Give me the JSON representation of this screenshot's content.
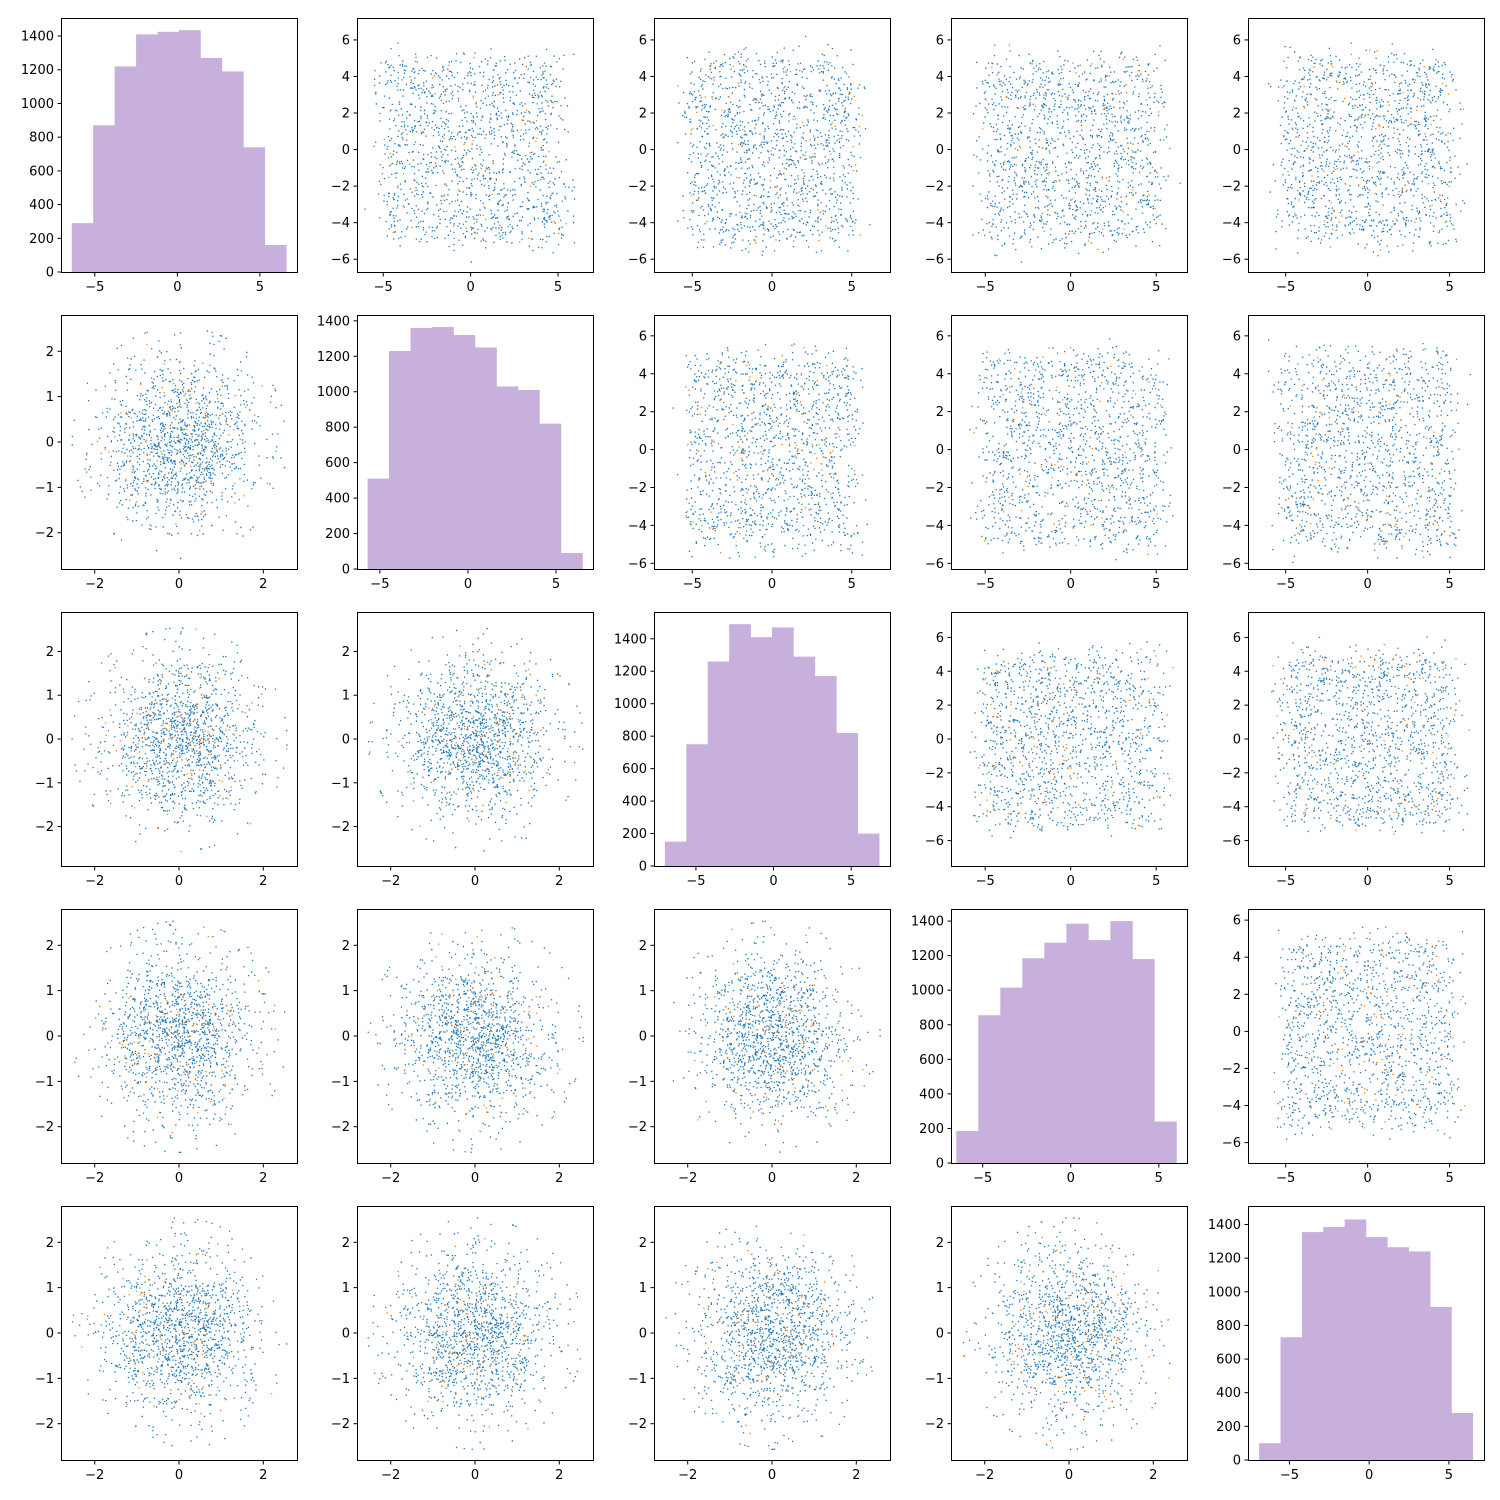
{
  "chart_data": {
    "type": "pairplot",
    "grid": false,
    "legend": "none",
    "colors": {
      "scatter_main": "#1f77b4",
      "scatter_highlight": "#ff7f0e",
      "histogram": "#c8b0dc"
    },
    "counts": [
      [
        290,
        870,
        1220,
        1410,
        1425,
        1435,
        1270,
        1190,
        740,
        160
      ],
      [
        510,
        1230,
        1360,
        1365,
        1320,
        1250,
        1030,
        1010,
        820,
        90
      ],
      [
        150,
        750,
        1260,
        1490,
        1410,
        1470,
        1290,
        1170,
        820,
        200
      ],
      [
        185,
        855,
        1015,
        1185,
        1275,
        1385,
        1290,
        1400,
        1180,
        240
      ],
      [
        100,
        730,
        1355,
        1385,
        1430,
        1325,
        1265,
        1240,
        910,
        280
      ]
    ],
    "hist_ranges": [
      [
        -6.4,
        6.6
      ],
      [
        -5.7,
        6.5
      ],
      [
        -7.0,
        6.8
      ],
      [
        -6.5,
        6.0
      ],
      [
        -6.9,
        6.5
      ]
    ],
    "panels": [
      {
        "row": 0,
        "col": 0,
        "type": "hist",
        "xlim": [
          -7.05,
          7.25
        ],
        "ylim": [
          0,
          1507
        ],
        "xticks": [
          "-5",
          "0",
          "5"
        ],
        "yticks": [
          "0",
          "200",
          "400",
          "600",
          "800",
          "1000",
          "1200",
          "1400"
        ]
      },
      {
        "row": 0,
        "col": 1,
        "type": "scatter",
        "xlim": [
          -6.5,
          7.0
        ],
        "ylim": [
          -6.7,
          7.2
        ],
        "xticks": [
          "-5",
          "0",
          "5"
        ],
        "yticks": [
          "-6",
          "-4",
          "-2",
          "0",
          "2",
          "4",
          "6"
        ]
      },
      {
        "row": 0,
        "col": 2,
        "type": "scatter",
        "xlim": [
          -7.4,
          7.4
        ],
        "ylim": [
          -6.7,
          7.2
        ],
        "xticks": [
          "-5",
          "0",
          "5"
        ],
        "yticks": [
          "-6",
          "-4",
          "-2",
          "0",
          "2",
          "4",
          "6"
        ]
      },
      {
        "row": 0,
        "col": 3,
        "type": "scatter",
        "xlim": [
          -7.0,
          6.8
        ],
        "ylim": [
          -6.7,
          7.2
        ],
        "xticks": [
          "-5",
          "0",
          "5"
        ],
        "yticks": [
          "-6",
          "-4",
          "-2",
          "0",
          "2",
          "4",
          "6"
        ]
      },
      {
        "row": 0,
        "col": 4,
        "type": "scatter",
        "xlim": [
          -7.3,
          7.1
        ],
        "ylim": [
          -6.7,
          7.2
        ],
        "xticks": [
          "-5",
          "0",
          "5"
        ],
        "yticks": [
          "-6",
          "-4",
          "-2",
          "0",
          "2",
          "4",
          "6"
        ]
      },
      {
        "row": 1,
        "col": 0,
        "type": "scatter",
        "xlim": [
          -2.8,
          2.8
        ],
        "ylim": [
          -2.8,
          2.8
        ],
        "xticks": [
          "-2",
          "0",
          "2"
        ],
        "yticks": [
          "-2",
          "-1",
          "0",
          "1",
          "2"
        ]
      },
      {
        "row": 1,
        "col": 1,
        "type": "hist",
        "xlim": [
          -6.3,
          7.1
        ],
        "ylim": [
          0,
          1433
        ],
        "xticks": [
          "-5",
          "0",
          "5"
        ],
        "yticks": [
          "0",
          "200",
          "400",
          "600",
          "800",
          "1000",
          "1200",
          "1400"
        ]
      },
      {
        "row": 1,
        "col": 2,
        "type": "scatter",
        "xlim": [
          -7.4,
          7.4
        ],
        "ylim": [
          -6.3,
          7.1
        ],
        "xticks": [
          "-5",
          "0",
          "5"
        ],
        "yticks": [
          "-6",
          "-4",
          "-2",
          "0",
          "2",
          "4",
          "6"
        ]
      },
      {
        "row": 1,
        "col": 3,
        "type": "scatter",
        "xlim": [
          -7.0,
          6.8
        ],
        "ylim": [
          -6.3,
          7.1
        ],
        "xticks": [
          "-5",
          "0",
          "5"
        ],
        "yticks": [
          "-6",
          "-4",
          "-2",
          "0",
          "2",
          "4",
          "6"
        ]
      },
      {
        "row": 1,
        "col": 4,
        "type": "scatter",
        "xlim": [
          -7.3,
          7.1
        ],
        "ylim": [
          -6.3,
          7.1
        ],
        "xticks": [
          "-5",
          "0",
          "5"
        ],
        "yticks": [
          "-6",
          "-4",
          "-2",
          "0",
          "2",
          "4",
          "6"
        ]
      },
      {
        "row": 2,
        "col": 0,
        "type": "scatter",
        "xlim": [
          -2.8,
          2.8
        ],
        "ylim": [
          -2.9,
          2.9
        ],
        "xticks": [
          "-2",
          "0",
          "2"
        ],
        "yticks": [
          "-2",
          "-1",
          "0",
          "1",
          "2"
        ]
      },
      {
        "row": 2,
        "col": 1,
        "type": "scatter",
        "xlim": [
          -2.8,
          2.8
        ],
        "ylim": [
          -2.9,
          2.9
        ],
        "xticks": [
          "-2",
          "0",
          "2"
        ],
        "yticks": [
          "-2",
          "-1",
          "0",
          "1",
          "2"
        ]
      },
      {
        "row": 2,
        "col": 2,
        "type": "hist",
        "xlim": [
          -7.7,
          7.5
        ],
        "ylim": [
          0,
          1565
        ],
        "xticks": [
          "-5",
          "0",
          "5"
        ],
        "yticks": [
          "0",
          "200",
          "400",
          "600",
          "800",
          "1000",
          "1200",
          "1400"
        ]
      },
      {
        "row": 2,
        "col": 3,
        "type": "scatter",
        "xlim": [
          -7.0,
          6.8
        ],
        "ylim": [
          -7.5,
          7.5
        ],
        "xticks": [
          "-5",
          "0",
          "5"
        ],
        "yticks": [
          "-6",
          "-4",
          "-2",
          "0",
          "2",
          "4",
          "6"
        ]
      },
      {
        "row": 2,
        "col": 4,
        "type": "scatter",
        "xlim": [
          -7.3,
          7.1
        ],
        "ylim": [
          -7.5,
          7.5
        ],
        "xticks": [
          "-5",
          "0",
          "5"
        ],
        "yticks": [
          "-6",
          "-4",
          "-2",
          "0",
          "2",
          "4",
          "6"
        ]
      },
      {
        "row": 3,
        "col": 0,
        "type": "scatter",
        "xlim": [
          -2.8,
          2.8
        ],
        "ylim": [
          -2.8,
          2.8
        ],
        "xticks": [
          "-2",
          "0",
          "2"
        ],
        "yticks": [
          "-2",
          "-1",
          "0",
          "1",
          "2"
        ]
      },
      {
        "row": 3,
        "col": 1,
        "type": "scatter",
        "xlim": [
          -2.8,
          2.8
        ],
        "ylim": [
          -2.8,
          2.8
        ],
        "xticks": [
          "-2",
          "0",
          "2"
        ],
        "yticks": [
          "-2",
          "-1",
          "0",
          "1",
          "2"
        ]
      },
      {
        "row": 3,
        "col": 2,
        "type": "scatter",
        "xlim": [
          -2.8,
          2.8
        ],
        "ylim": [
          -2.8,
          2.8
        ],
        "xticks": [
          "-2",
          "0",
          "2"
        ],
        "yticks": [
          "-2",
          "-1",
          "0",
          "1",
          "2"
        ]
      },
      {
        "row": 3,
        "col": 3,
        "type": "hist",
        "xlim": [
          -6.8,
          6.6
        ],
        "ylim": [
          0,
          1470
        ],
        "xticks": [
          "-5",
          "0",
          "5"
        ],
        "yticks": [
          "0",
          "200",
          "400",
          "600",
          "800",
          "1000",
          "1200",
          "1400"
        ]
      },
      {
        "row": 3,
        "col": 4,
        "type": "scatter",
        "xlim": [
          -7.3,
          7.1
        ],
        "ylim": [
          -7.1,
          6.6
        ],
        "xticks": [
          "-5",
          "0",
          "5"
        ],
        "yticks": [
          "-6",
          "-4",
          "-2",
          "0",
          "2",
          "4",
          "6"
        ]
      },
      {
        "row": 4,
        "col": 0,
        "type": "scatter",
        "xlim": [
          -2.8,
          2.8
        ],
        "ylim": [
          -2.8,
          2.8
        ],
        "xticks": [
          "-2",
          "0",
          "2"
        ],
        "yticks": [
          "-2",
          "-1",
          "0",
          "1",
          "2"
        ]
      },
      {
        "row": 4,
        "col": 1,
        "type": "scatter",
        "xlim": [
          -2.8,
          2.8
        ],
        "ylim": [
          -2.8,
          2.8
        ],
        "xticks": [
          "-2",
          "0",
          "2"
        ],
        "yticks": [
          "-2",
          "-1",
          "0",
          "1",
          "2"
        ]
      },
      {
        "row": 4,
        "col": 2,
        "type": "scatter",
        "xlim": [
          -2.8,
          2.8
        ],
        "ylim": [
          -2.8,
          2.8
        ],
        "xticks": [
          "-2",
          "0",
          "2"
        ],
        "yticks": [
          "-2",
          "-1",
          "0",
          "1",
          "2"
        ]
      },
      {
        "row": 4,
        "col": 3,
        "type": "scatter",
        "xlim": [
          -2.8,
          2.8
        ],
        "ylim": [
          -2.8,
          2.8
        ],
        "xticks": [
          "-2",
          "0",
          "2"
        ],
        "yticks": [
          "-2",
          "-1",
          "0",
          "1",
          "2"
        ]
      },
      {
        "row": 4,
        "col": 4,
        "type": "hist",
        "xlim": [
          -7.6,
          7.2
        ],
        "ylim": [
          0,
          1510
        ],
        "xticks": [
          "-5",
          "0",
          "5"
        ],
        "yticks": [
          "0",
          "200",
          "400",
          "600",
          "800",
          "1000",
          "1200",
          "1400"
        ]
      }
    ]
  }
}
